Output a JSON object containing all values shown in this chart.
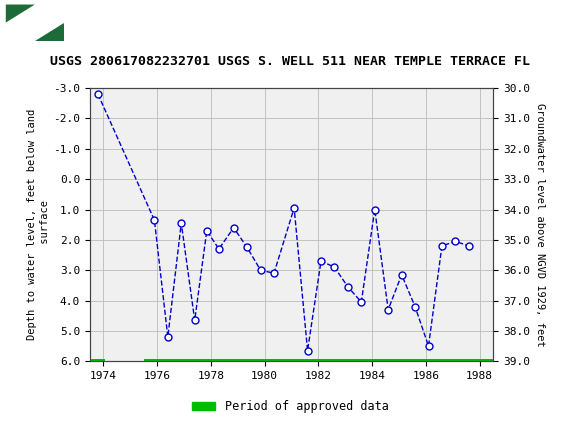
{
  "title": "USGS 280617082232701 USGS S. WELL 511 NEAR TEMPLE TERRACE FL",
  "ylabel_left": "Depth to water level, feet below land\n surface",
  "ylabel_right": "Groundwater level above NGVD 1929, feet",
  "xlim": [
    1973.5,
    1988.5
  ],
  "ylim_left": [
    -3.0,
    6.0
  ],
  "ylim_right": [
    30.0,
    39.0
  ],
  "yticks_left": [
    -3.0,
    -2.0,
    -1.0,
    0.0,
    1.0,
    2.0,
    3.0,
    4.0,
    5.0,
    6.0
  ],
  "yticks_right": [
    30.0,
    31.0,
    32.0,
    33.0,
    34.0,
    35.0,
    36.0,
    37.0,
    38.0,
    39.0
  ],
  "xticks": [
    1974,
    1976,
    1978,
    1980,
    1982,
    1984,
    1986,
    1988
  ],
  "x_data": [
    1973.8,
    1975.9,
    1976.4,
    1976.9,
    1977.4,
    1977.85,
    1978.3,
    1978.85,
    1979.35,
    1979.85,
    1980.35,
    1981.1,
    1981.6,
    1982.1,
    1982.6,
    1983.1,
    1983.6,
    1984.1,
    1984.6,
    1985.1,
    1985.6,
    1986.1,
    1986.6,
    1987.1,
    1987.6
  ],
  "y_data": [
    -2.8,
    1.35,
    5.2,
    1.45,
    4.65,
    1.7,
    2.3,
    1.6,
    2.25,
    3.0,
    3.1,
    0.95,
    5.65,
    2.7,
    2.9,
    3.55,
    4.05,
    1.0,
    4.3,
    3.15,
    4.2,
    5.5,
    2.2,
    2.05,
    2.2
  ],
  "line_color": "#0000cc",
  "marker_color": "#0000cc",
  "marker_face": "#ffffff",
  "marker_size": 5,
  "line_style": "--",
  "line_width": 1.0,
  "grid_color": "#bbbbbb",
  "bg_color": "#ffffff",
  "plot_bg": "#f0f0f0",
  "header_bg": "#1e6b3a",
  "approved_bar_color": "#00bb00",
  "legend_label": "Period of approved data",
  "title_fontsize": 9.5,
  "axis_fontsize": 7.5,
  "tick_fontsize": 8
}
